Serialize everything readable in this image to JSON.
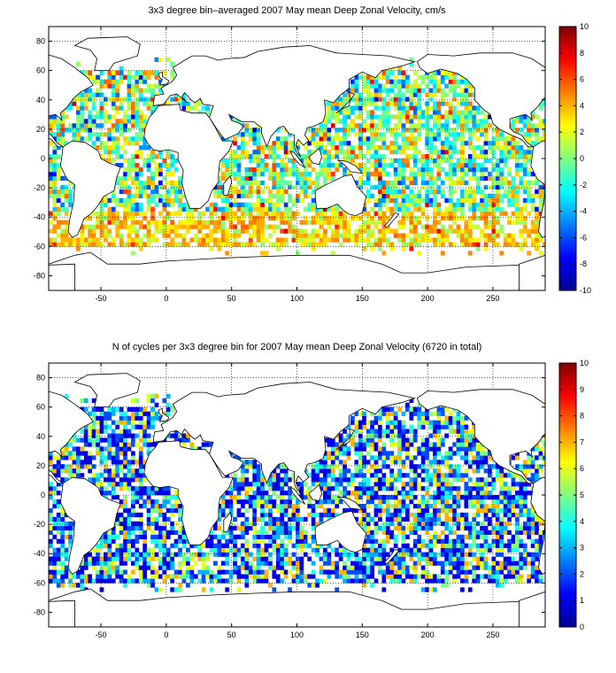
{
  "panels": [
    {
      "title": "3x3 degree bin–averaged 2007 May mean Deep Zonal Velocity, cm/s",
      "colorbar": {
        "min": -10,
        "max": 10,
        "ticks": [
          10,
          8,
          6,
          4,
          2,
          0,
          -2,
          -4,
          -6,
          -8,
          -10
        ]
      }
    },
    {
      "title": "N of cycles per 3x3 degree bin for 2007 May mean Deep Zonal Velocity (6720 in total)",
      "colorbar": {
        "min": 0,
        "max": 10,
        "ticks": [
          10,
          9,
          8,
          7,
          6,
          5,
          4,
          3,
          2,
          1,
          0
        ]
      }
    }
  ],
  "chart_data": [
    {
      "type": "heatmap",
      "title": "3x3 degree bin–averaged 2007 May mean Deep Zonal Velocity, cm/s",
      "xlim": [
        -90,
        290
      ],
      "ylim": [
        -90,
        90
      ],
      "x_ticks": [
        -50,
        0,
        50,
        100,
        150,
        200,
        250
      ],
      "y_ticks": [
        80,
        60,
        40,
        20,
        0,
        -20,
        -40,
        -60,
        -80
      ],
      "grid": true,
      "colormap": "jet",
      "clim": [
        -10,
        10
      ],
      "colorbar_ticks": [
        10,
        8,
        6,
        4,
        2,
        0,
        -2,
        -4,
        -6,
        -8,
        -10
      ]
    },
    {
      "type": "heatmap",
      "title": "N of cycles per 3x3 degree bin for 2007 May mean Deep Zonal Velocity (6720 in total)",
      "xlim": [
        -90,
        290
      ],
      "ylim": [
        -90,
        90
      ],
      "x_ticks": [
        -50,
        0,
        50,
        100,
        150,
        200,
        250
      ],
      "y_ticks": [
        80,
        60,
        40,
        20,
        0,
        -20,
        -40,
        -60,
        -80
      ],
      "grid": true,
      "colormap": "jet",
      "clim": [
        0,
        10
      ],
      "colorbar_ticks": [
        10,
        9,
        8,
        7,
        6,
        5,
        4,
        3,
        2,
        1,
        0
      ],
      "total_cycles": 6720
    }
  ]
}
